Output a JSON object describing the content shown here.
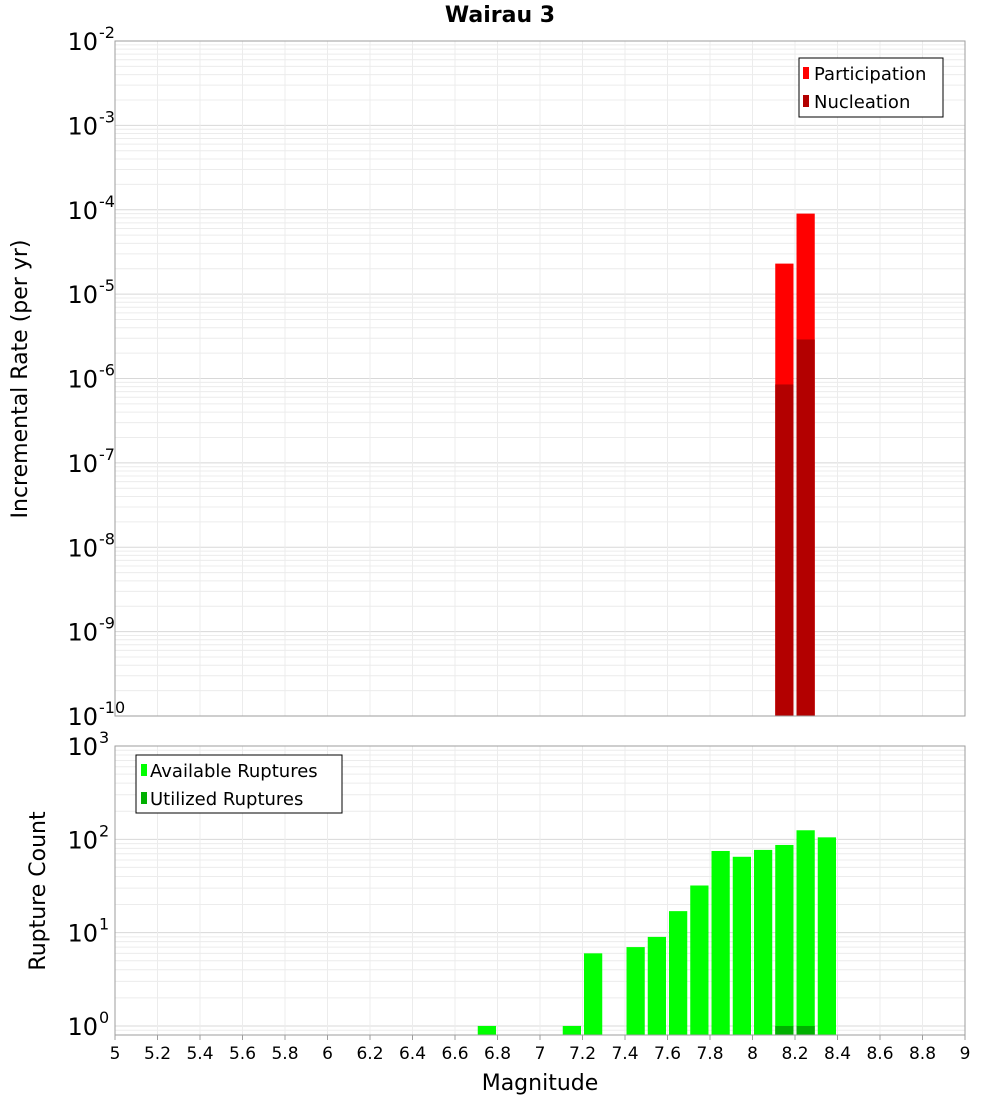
{
  "chart_data": [
    {
      "type": "bar",
      "title": "Wairau 3",
      "xlabel": "Magnitude",
      "ylabel": "Incremental Rate (per yr)",
      "yscale": "log",
      "ylim": [
        1e-10,
        0.01
      ],
      "xlim": [
        5,
        9
      ],
      "bin_width": 0.1,
      "grid": true,
      "legend_position": "top-right",
      "series": [
        {
          "name": "Participation",
          "color": "#ff0000",
          "x": [
            8.15,
            8.25
          ],
          "values": [
            2.3e-05,
            9e-05
          ]
        },
        {
          "name": "Nucleation",
          "color": "#b30000",
          "x": [
            8.15,
            8.25
          ],
          "values": [
            8.5e-07,
            2.9e-06
          ]
        }
      ],
      "ytick_bases": [
        "10",
        "10",
        "10",
        "10",
        "10",
        "10",
        "10",
        "10",
        "10"
      ],
      "ytick_exponents": [
        "-10",
        "-9",
        "-8",
        "-7",
        "-6",
        "-5",
        "-4",
        "-3",
        "-2"
      ]
    },
    {
      "type": "bar",
      "xlabel": "Magnitude",
      "ylabel": "Rupture Count",
      "yscale": "log",
      "ylim": [
        0.8,
        1000
      ],
      "xlim": [
        5,
        9
      ],
      "bin_width": 0.1,
      "grid": true,
      "legend_position": "top-left",
      "series": [
        {
          "name": "Available Ruptures",
          "color": "#00ff00",
          "x": [
            6.75,
            7.15,
            7.25,
            7.45,
            7.55,
            7.65,
            7.75,
            7.85,
            7.95,
            8.05,
            8.15,
            8.25,
            8.35
          ],
          "values": [
            1,
            1,
            6,
            7,
            9,
            17,
            32,
            75,
            65,
            77,
            87,
            125,
            105
          ]
        },
        {
          "name": "Utilized Ruptures",
          "color": "#00b000",
          "x": [
            8.15,
            8.25
          ],
          "values": [
            1,
            1
          ]
        }
      ],
      "ytick_bases": [
        "10",
        "10",
        "10",
        "10"
      ],
      "ytick_exponents": [
        "0",
        "1",
        "2",
        "3"
      ],
      "xtick_labels": [
        "5",
        "5.2",
        "5.4",
        "5.6",
        "5.8",
        "6",
        "6.2",
        "6.4",
        "6.6",
        "6.8",
        "7",
        "7.2",
        "7.4",
        "7.6",
        "7.8",
        "8",
        "8.2",
        "8.4",
        "8.6",
        "8.8",
        "9"
      ]
    }
  ]
}
